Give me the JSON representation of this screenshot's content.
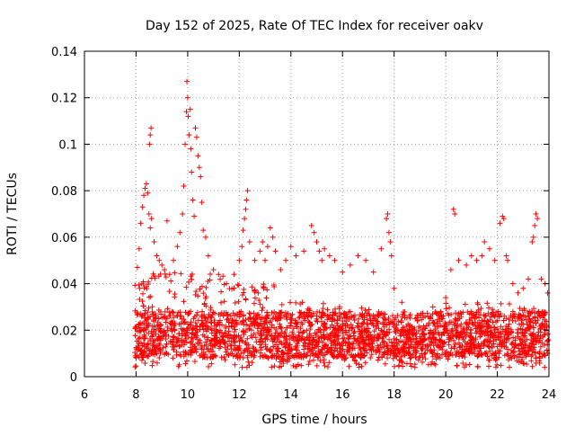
{
  "chart_data": {
    "type": "scatter",
    "title": "Day 152 of 2025, Rate Of TEC Index for receiver oakv",
    "xlabel": "GPS time / hours",
    "ylabel": "ROTI / TECUs",
    "xlim": [
      6,
      24
    ],
    "ylim": [
      0,
      0.14
    ],
    "xticks": [
      6,
      8,
      10,
      12,
      14,
      16,
      18,
      20,
      22,
      24
    ],
    "xtick_labels": [
      "6",
      "8",
      "10",
      "12",
      "14",
      "16",
      "18",
      "20",
      "22",
      "24"
    ],
    "yticks": [
      0,
      0.02,
      0.04,
      0.06,
      0.08,
      0.1,
      0.12,
      0.14
    ],
    "ytick_labels": [
      "0",
      "0.02",
      "0.04",
      "0.06",
      "0.08",
      "0.1",
      "0.12",
      "0.14"
    ],
    "grid": true,
    "marker": "+",
    "color": "#ff0000",
    "series": [
      {
        "name": "ROTI",
        "points": [
          [
            8.05,
            0.047
          ],
          [
            8.12,
            0.055
          ],
          [
            8.18,
            0.066
          ],
          [
            8.25,
            0.073
          ],
          [
            8.3,
            0.078
          ],
          [
            8.35,
            0.081
          ],
          [
            8.4,
            0.083
          ],
          [
            8.45,
            0.079
          ],
          [
            8.5,
            0.07
          ],
          [
            8.55,
            0.064
          ],
          [
            8.6,
            0.068
          ],
          [
            8.52,
            0.1
          ],
          [
            8.55,
            0.104
          ],
          [
            8.58,
            0.107
          ],
          [
            8.7,
            0.058
          ],
          [
            8.8,
            0.052
          ],
          [
            8.9,
            0.05
          ],
          [
            9.0,
            0.048
          ],
          [
            9.1,
            0.046
          ],
          [
            9.2,
            0.067
          ],
          [
            9.3,
            0.044
          ],
          [
            9.45,
            0.05
          ],
          [
            9.6,
            0.056
          ],
          [
            9.7,
            0.062
          ],
          [
            9.8,
            0.07
          ],
          [
            9.85,
            0.082
          ],
          [
            9.9,
            0.1
          ],
          [
            9.95,
            0.114
          ],
          [
            9.97,
            0.127
          ],
          [
            10.0,
            0.12
          ],
          [
            10.02,
            0.112
          ],
          [
            10.05,
            0.104
          ],
          [
            10.1,
            0.115
          ],
          [
            10.12,
            0.098
          ],
          [
            10.15,
            0.088
          ],
          [
            10.2,
            0.076
          ],
          [
            10.25,
            0.069
          ],
          [
            10.3,
            0.107
          ],
          [
            10.35,
            0.103
          ],
          [
            10.4,
            0.095
          ],
          [
            10.45,
            0.09
          ],
          [
            10.5,
            0.086
          ],
          [
            10.55,
            0.075
          ],
          [
            10.6,
            0.063
          ],
          [
            10.7,
            0.06
          ],
          [
            10.8,
            0.052
          ],
          [
            11.0,
            0.046
          ],
          [
            11.2,
            0.044
          ],
          [
            11.5,
            0.04
          ],
          [
            11.8,
            0.044
          ],
          [
            12.0,
            0.05
          ],
          [
            12.1,
            0.056
          ],
          [
            12.15,
            0.063
          ],
          [
            12.2,
            0.068
          ],
          [
            12.25,
            0.072
          ],
          [
            12.28,
            0.076
          ],
          [
            12.32,
            0.08
          ],
          [
            12.4,
            0.058
          ],
          [
            12.6,
            0.05
          ],
          [
            12.8,
            0.054
          ],
          [
            12.9,
            0.058
          ],
          [
            13.0,
            0.05
          ],
          [
            13.1,
            0.056
          ],
          [
            13.2,
            0.064
          ],
          [
            13.3,
            0.06
          ],
          [
            13.4,
            0.054
          ],
          [
            13.6,
            0.046
          ],
          [
            13.8,
            0.05
          ],
          [
            14.0,
            0.056
          ],
          [
            14.2,
            0.052
          ],
          [
            14.5,
            0.054
          ],
          [
            14.8,
            0.065
          ],
          [
            14.9,
            0.062
          ],
          [
            15.0,
            0.058
          ],
          [
            15.1,
            0.054
          ],
          [
            15.2,
            0.05
          ],
          [
            15.3,
            0.055
          ],
          [
            15.5,
            0.052
          ],
          [
            15.7,
            0.05
          ],
          [
            16.0,
            0.045
          ],
          [
            16.3,
            0.048
          ],
          [
            16.6,
            0.052
          ],
          [
            16.9,
            0.05
          ],
          [
            17.2,
            0.045
          ],
          [
            17.5,
            0.055
          ],
          [
            17.7,
            0.068
          ],
          [
            17.75,
            0.07
          ],
          [
            17.8,
            0.062
          ],
          [
            17.85,
            0.058
          ],
          [
            17.9,
            0.052
          ],
          [
            18.0,
            0.038
          ],
          [
            18.3,
            0.032
          ],
          [
            18.6,
            0.026
          ],
          [
            18.9,
            0.024
          ],
          [
            19.2,
            0.026
          ],
          [
            19.5,
            0.03
          ],
          [
            19.8,
            0.028
          ],
          [
            20.0,
            0.034
          ],
          [
            20.2,
            0.046
          ],
          [
            20.3,
            0.072
          ],
          [
            20.35,
            0.07
          ],
          [
            20.5,
            0.05
          ],
          [
            20.8,
            0.048
          ],
          [
            21.0,
            0.052
          ],
          [
            21.2,
            0.05
          ],
          [
            21.4,
            0.052
          ],
          [
            21.5,
            0.058
          ],
          [
            21.7,
            0.055
          ],
          [
            21.9,
            0.05
          ],
          [
            22.1,
            0.066
          ],
          [
            22.2,
            0.069
          ],
          [
            22.25,
            0.068
          ],
          [
            22.35,
            0.052
          ],
          [
            22.4,
            0.05
          ],
          [
            22.6,
            0.04
          ],
          [
            22.8,
            0.036
          ],
          [
            23.0,
            0.038
          ],
          [
            23.2,
            0.042
          ],
          [
            23.35,
            0.058
          ],
          [
            23.4,
            0.06
          ],
          [
            23.45,
            0.065
          ],
          [
            23.5,
            0.07
          ],
          [
            23.55,
            0.068
          ],
          [
            23.7,
            0.042
          ],
          [
            23.85,
            0.04
          ],
          [
            23.95,
            0.036
          ]
        ]
      }
    ]
  }
}
